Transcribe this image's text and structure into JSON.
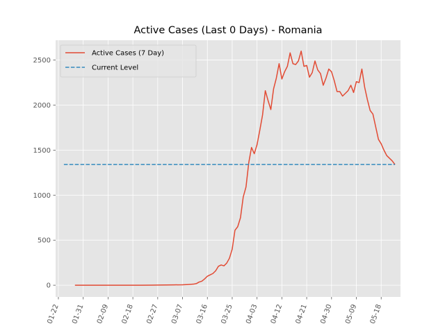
{
  "chart_data": {
    "type": "line",
    "title": "Active Cases (Last 0 Days) - Romania",
    "xlabel": "",
    "ylabel": "",
    "x_start": "2020-01-22",
    "x_ticks": [
      "01-22",
      "01-31",
      "02-09",
      "02-18",
      "02-27",
      "03-07",
      "03-16",
      "03-25",
      "04-03",
      "04-12",
      "04-21",
      "04-30",
      "05-09",
      "05-18"
    ],
    "xlim": [
      "2020-01-21",
      "2020-05-25"
    ],
    "ylim": [
      -130,
      2720
    ],
    "y_ticks": [
      0,
      500,
      1000,
      1500,
      2000,
      2500
    ],
    "grid": true,
    "legend_position": "upper left",
    "series": [
      {
        "name": "Active Cases (7 Day)",
        "color": "#e24a33",
        "style": "solid",
        "points": [
          [
            "2020-01-28",
            0
          ],
          [
            "2020-02-01",
            0
          ],
          [
            "2020-02-05",
            0
          ],
          [
            "2020-02-09",
            0
          ],
          [
            "2020-02-13",
            0
          ],
          [
            "2020-02-17",
            0
          ],
          [
            "2020-02-21",
            0
          ],
          [
            "2020-02-25",
            1
          ],
          [
            "2020-02-27",
            2
          ],
          [
            "2020-03-01",
            3
          ],
          [
            "2020-03-04",
            4
          ],
          [
            "2020-03-07",
            5
          ],
          [
            "2020-03-09",
            8
          ],
          [
            "2020-03-11",
            12
          ],
          [
            "2020-03-12",
            18
          ],
          [
            "2020-03-13",
            35
          ],
          [
            "2020-03-14",
            45
          ],
          [
            "2020-03-15",
            70
          ],
          [
            "2020-03-16",
            100
          ],
          [
            "2020-03-17",
            115
          ],
          [
            "2020-03-18",
            130
          ],
          [
            "2020-03-19",
            160
          ],
          [
            "2020-03-20",
            210
          ],
          [
            "2020-03-21",
            225
          ],
          [
            "2020-03-22",
            215
          ],
          [
            "2020-03-23",
            245
          ],
          [
            "2020-03-24",
            300
          ],
          [
            "2020-03-25",
            400
          ],
          [
            "2020-03-26",
            610
          ],
          [
            "2020-03-27",
            650
          ],
          [
            "2020-03-28",
            750
          ],
          [
            "2020-03-29",
            980
          ],
          [
            "2020-03-30",
            1090
          ],
          [
            "2020-03-31",
            1360
          ],
          [
            "2020-04-01",
            1530
          ],
          [
            "2020-04-02",
            1460
          ],
          [
            "2020-04-03",
            1560
          ],
          [
            "2020-04-04",
            1720
          ],
          [
            "2020-04-05",
            1890
          ],
          [
            "2020-04-06",
            2160
          ],
          [
            "2020-04-07",
            2050
          ],
          [
            "2020-04-08",
            1950
          ],
          [
            "2020-04-09",
            2180
          ],
          [
            "2020-04-10",
            2300
          ],
          [
            "2020-04-11",
            2460
          ],
          [
            "2020-04-12",
            2290
          ],
          [
            "2020-04-13",
            2370
          ],
          [
            "2020-04-14",
            2430
          ],
          [
            "2020-04-15",
            2580
          ],
          [
            "2020-04-16",
            2460
          ],
          [
            "2020-04-17",
            2450
          ],
          [
            "2020-04-18",
            2490
          ],
          [
            "2020-04-19",
            2600
          ],
          [
            "2020-04-20",
            2430
          ],
          [
            "2020-04-21",
            2440
          ],
          [
            "2020-04-22",
            2310
          ],
          [
            "2020-04-23",
            2360
          ],
          [
            "2020-04-24",
            2490
          ],
          [
            "2020-04-25",
            2390
          ],
          [
            "2020-04-26",
            2350
          ],
          [
            "2020-04-27",
            2220
          ],
          [
            "2020-04-28",
            2300
          ],
          [
            "2020-04-29",
            2400
          ],
          [
            "2020-04-30",
            2370
          ],
          [
            "2020-05-01",
            2270
          ],
          [
            "2020-05-02",
            2150
          ],
          [
            "2020-05-03",
            2150
          ],
          [
            "2020-05-04",
            2100
          ],
          [
            "2020-05-05",
            2130
          ],
          [
            "2020-05-06",
            2160
          ],
          [
            "2020-05-07",
            2220
          ],
          [
            "2020-05-08",
            2140
          ],
          [
            "2020-05-09",
            2260
          ],
          [
            "2020-05-10",
            2250
          ],
          [
            "2020-05-11",
            2400
          ],
          [
            "2020-05-12",
            2200
          ],
          [
            "2020-05-13",
            2060
          ],
          [
            "2020-05-14",
            1940
          ],
          [
            "2020-05-15",
            1900
          ],
          [
            "2020-05-16",
            1760
          ],
          [
            "2020-05-17",
            1620
          ],
          [
            "2020-05-18",
            1570
          ],
          [
            "2020-05-19",
            1500
          ],
          [
            "2020-05-20",
            1440
          ],
          [
            "2020-05-21",
            1410
          ],
          [
            "2020-05-22",
            1380
          ],
          [
            "2020-05-23",
            1340
          ]
        ]
      },
      {
        "name": "Current Level",
        "color": "#348abd",
        "style": "dashed",
        "points": [
          [
            "2020-01-24",
            1340
          ],
          [
            "2020-05-23",
            1340
          ]
        ]
      }
    ]
  }
}
